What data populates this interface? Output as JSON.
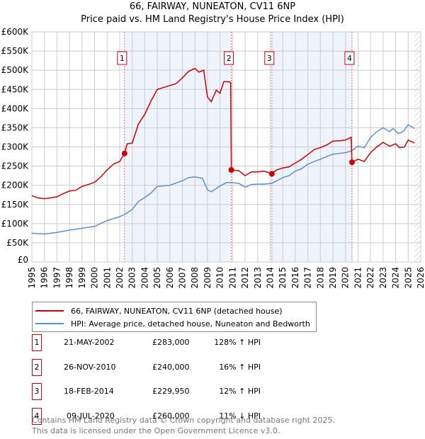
{
  "chart_data": {
    "type": "line",
    "title": "66, FAIRWAY, NUNEATON, CV11 6NP",
    "subtitle": "Price paid vs. HM Land Registry's House Price Index (HPI)",
    "xlim": [
      1995,
      2026
    ],
    "ylim": [
      0,
      600000
    ],
    "y_ticks": [
      0,
      50000,
      100000,
      150000,
      200000,
      250000,
      300000,
      350000,
      400000,
      450000,
      500000,
      550000,
      600000
    ],
    "y_tick_labels": [
      "£0",
      "£50K",
      "£100K",
      "£150K",
      "£200K",
      "£250K",
      "£300K",
      "£350K",
      "£400K",
      "£450K",
      "£500K",
      "£550K",
      "£600K"
    ],
    "x_tick_labels": [
      "1995",
      "1996",
      "1997",
      "1998",
      "1999",
      "2000",
      "2001",
      "2002",
      "2003",
      "2004",
      "2005",
      "2006",
      "2007",
      "2008",
      "2009",
      "2010",
      "2011",
      "2012",
      "2013",
      "2014",
      "2015",
      "2016",
      "2017",
      "2018",
      "2019",
      "2020",
      "2021",
      "2022",
      "2023",
      "2024",
      "2025",
      "2026"
    ],
    "grid": true,
    "shaded_ranges": [
      [
        2002.39,
        2010.9
      ],
      [
        2014.13,
        2020.52
      ]
    ],
    "hatched_from": 2025.5,
    "series": [
      {
        "name": "66, FAIRWAY, NUNEATON, CV11 6NP (detached house)",
        "color": "#cc0000",
        "x": [
          1995,
          1995.5,
          1996,
          1996.5,
          1997,
          1997.5,
          1998,
          1998.5,
          1999,
          1999.5,
          2000,
          2000.5,
          2001,
          2001.5,
          2002,
          2002.39,
          2002.6,
          2003,
          2003.5,
          2004,
          2004.5,
          2005,
          2005.5,
          2006,
          2006.5,
          2007,
          2007.5,
          2008,
          2008.3,
          2008.7,
          2009,
          2009.3,
          2009.7,
          2010,
          2010.3,
          2010.7,
          2010.85,
          2010.9,
          2011.5,
          2012,
          2012.5,
          2013,
          2013.5,
          2014.13,
          2014.5,
          2015,
          2015.5,
          2016,
          2016.5,
          2017,
          2017.5,
          2018,
          2018.5,
          2019,
          2019.5,
          2020,
          2020.45,
          2020.52,
          2021,
          2021.5,
          2022,
          2022.5,
          2023,
          2023.5,
          2024,
          2024.3,
          2024.7,
          2025,
          2025.5
        ],
        "y": [
          173000,
          167000,
          165000,
          167000,
          170000,
          178000,
          185000,
          187000,
          197000,
          202000,
          208000,
          222000,
          240000,
          255000,
          262000,
          283000,
          308000,
          310000,
          360000,
          385000,
          420000,
          450000,
          455000,
          460000,
          465000,
          480000,
          497000,
          505000,
          495000,
          500000,
          430000,
          418000,
          448000,
          440000,
          470000,
          470000,
          468000,
          240000,
          238000,
          225000,
          235000,
          235000,
          237000,
          229950,
          240000,
          245000,
          248000,
          258000,
          268000,
          280000,
          293000,
          298000,
          305000,
          315000,
          316000,
          318000,
          325000,
          260000,
          268000,
          262000,
          285000,
          300000,
          312000,
          302000,
          308000,
          298000,
          300000,
          318000,
          310000
        ]
      },
      {
        "name": "HPI: Average price, detached house, Nuneaton and Bedworth",
        "color": "#5b8fd6",
        "x": [
          1995,
          1996,
          1997,
          1998,
          1999,
          2000,
          2001,
          2002,
          2002.4,
          2003,
          2003.5,
          2004,
          2004.5,
          2005,
          2006,
          2007,
          2007.5,
          2008,
          2008.6,
          2009,
          2009.3,
          2010,
          2010.5,
          2010.9,
          2011.5,
          2012,
          2012.5,
          2013,
          2013.5,
          2014.13,
          2015,
          2015.5,
          2016,
          2016.5,
          2017,
          2017.5,
          2018,
          2018.5,
          2019,
          2020,
          2020.5,
          2021,
          2021.5,
          2022,
          2022.5,
          2023,
          2023.5,
          2023.8,
          2024.2,
          2024.6,
          2025,
          2025.5
        ],
        "y": [
          75000,
          73000,
          77000,
          83000,
          88000,
          93000,
          108000,
          118000,
          124000,
          137000,
          158000,
          168000,
          180000,
          197000,
          200000,
          212000,
          220000,
          222000,
          218000,
          188000,
          183000,
          198000,
          207000,
          207000,
          205000,
          195000,
          202000,
          203000,
          203000,
          205000,
          220000,
          225000,
          237000,
          243000,
          255000,
          262000,
          268000,
          275000,
          281000,
          285000,
          290000,
          302000,
          298000,
          325000,
          340000,
          350000,
          340000,
          348000,
          335000,
          340000,
          358000,
          348000
        ]
      }
    ],
    "sales": [
      {
        "label": "1",
        "x": 2002.39,
        "y": 283000
      },
      {
        "label": "2",
        "x": 2010.9,
        "y": 240000
      },
      {
        "label": "3",
        "x": 2014.13,
        "y": 229950
      },
      {
        "label": "4",
        "x": 2020.52,
        "y": 260000
      }
    ]
  },
  "legend": {
    "property": "66, FAIRWAY, NUNEATON, CV11 6NP (detached house)",
    "hpi": "HPI: Average price, detached house, Nuneaton and Bedworth"
  },
  "transactions": [
    {
      "num": "1",
      "date": "21-MAY-2002",
      "price": "£283,000",
      "hpi": "128% ↑ HPI"
    },
    {
      "num": "2",
      "date": "26-NOV-2010",
      "price": "£240,000",
      "hpi": "16% ↑ HPI"
    },
    {
      "num": "3",
      "date": "18-FEB-2014",
      "price": "£229,950",
      "hpi": "12% ↑ HPI"
    },
    {
      "num": "4",
      "date": "09-JUL-2020",
      "price": "£260,000",
      "hpi": "11% ↓ HPI"
    }
  ],
  "footer": {
    "line1": "Contains HM Land Registry data © Crown copyright and database right 2025.",
    "line2": "This data is licensed under the Open Government Licence v3.0."
  }
}
